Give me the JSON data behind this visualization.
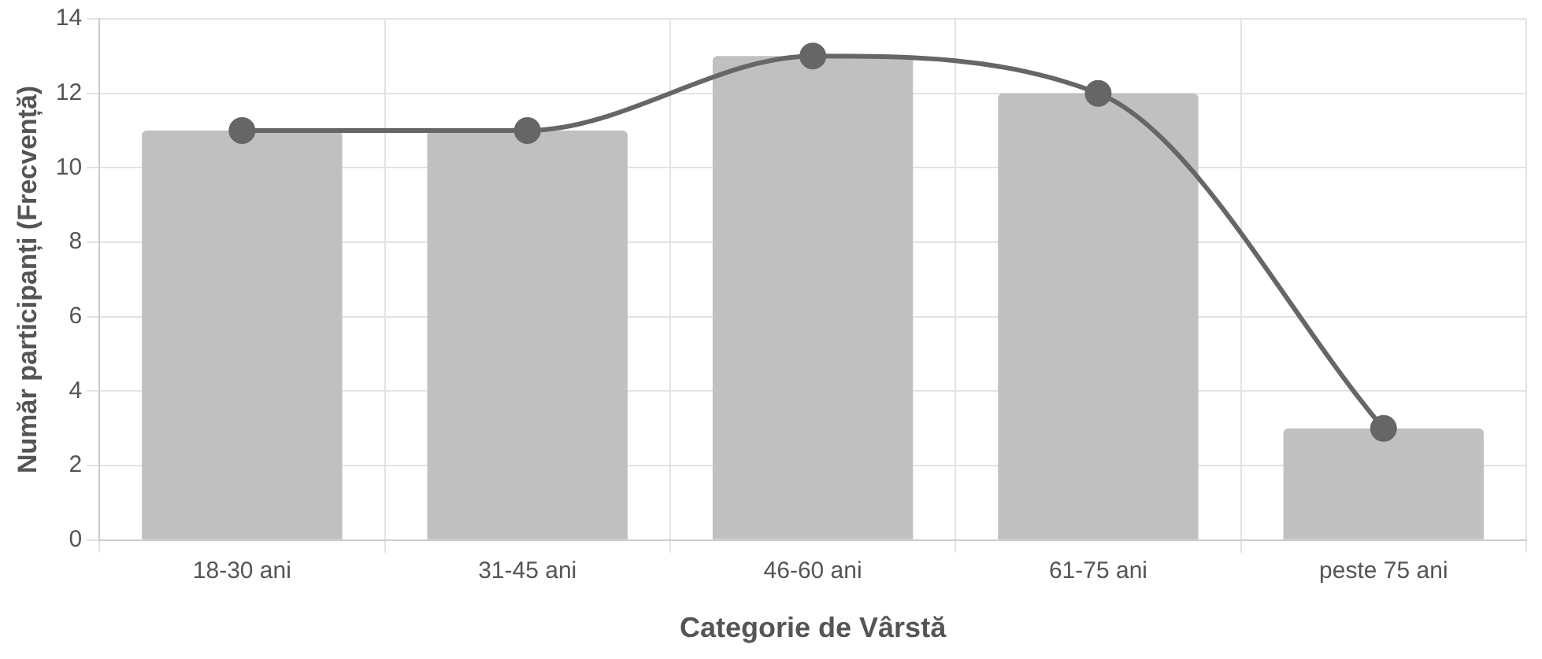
{
  "chart_data": {
    "type": "bar",
    "xlabel": "Categorie de Vârstă",
    "ylabel": "Număr participanți (Frecvență)",
    "categories": [
      "18-30 ani",
      "31-45 ani",
      "46-60 ani",
      "61-75 ani",
      "peste 75 ani"
    ],
    "series": [
      {
        "color": "#c0c0c0",
        "values": [
          11,
          11,
          13,
          12,
          3
        ]
      },
      {
        "type": "line",
        "color": "#666666",
        "values": [
          11,
          11,
          13,
          12,
          3
        ]
      }
    ],
    "ylim": [
      0,
      14
    ],
    "yticks": [
      0,
      2,
      4,
      6,
      8,
      10,
      12,
      14
    ],
    "grid": true,
    "marker": "circle"
  }
}
